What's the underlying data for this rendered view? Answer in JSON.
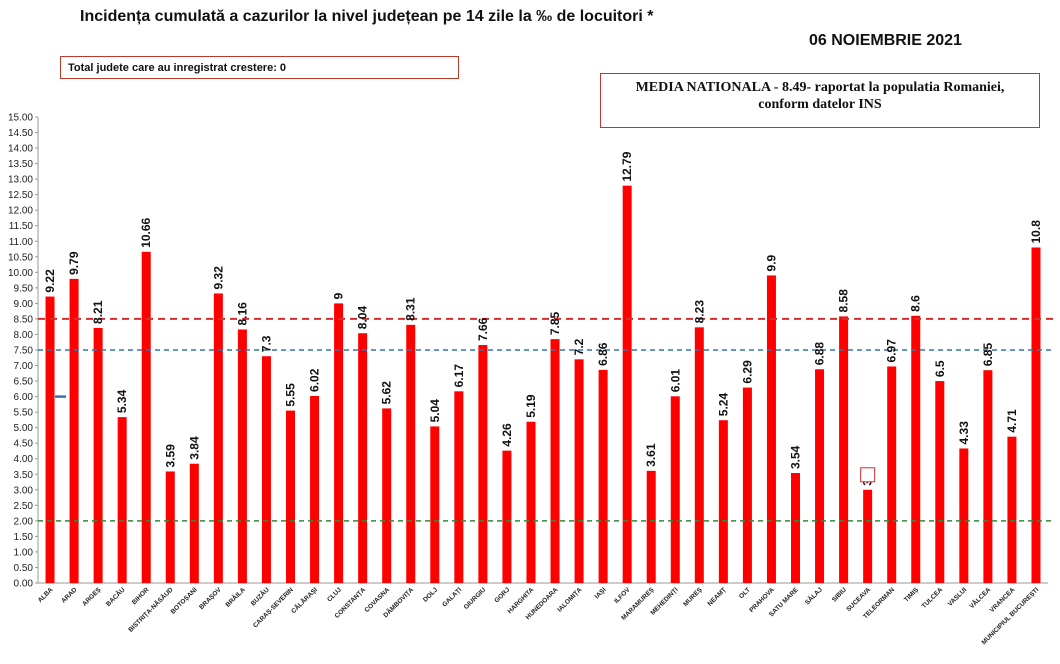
{
  "header": {
    "title": "Incidența cumulată a cazurilor la nivel județean pe 14 zile la ‰ de locuitori *",
    "date": "06 NOIEMBRIE 2021",
    "growth_box": "Total judete care au inregistrat crestere: 0",
    "national_box_line1": "MEDIA NATIONALA - 8.49-  raportat la populatia Romaniei,",
    "national_box_line2": "conform datelor INS"
  },
  "colors": {
    "bar": "#ff0000",
    "national_line": "#d62d2d",
    "blue_line": "#2e75b6",
    "green_line": "#2e8b3c"
  },
  "chart_data": {
    "type": "bar",
    "title": "Incidența cumulată a cazurilor la nivel județean pe 14 zile la ‰ de locuitori *",
    "categories": [
      "ALBA",
      "ARAD",
      "ARGEȘ",
      "BACĂU",
      "BIHOR",
      "BISTRIȚA-NĂSĂUD",
      "BOTOȘANI",
      "BRAȘOV",
      "BRĂILA",
      "BUZĂU",
      "CARAȘ-SEVERIN",
      "CĂLĂRAȘI",
      "CLUJ",
      "CONSTANȚA",
      "COVASNA",
      "DÂMBOVIȚA",
      "DOLJ",
      "GALAȚI",
      "GIURGIU",
      "GORJ",
      "HARGHITA",
      "HUNEDOARA",
      "IALOMIȚA",
      "IAȘI",
      "ILFOV",
      "MARAMUREȘ",
      "MEHEDINȚI",
      "MUREȘ",
      "NEAMȚ",
      "OLT",
      "PRAHOVA",
      "SATU MARE",
      "SĂLAJ",
      "SIBIU",
      "SUCEAVA",
      "TELEORMAN",
      "TIMIȘ",
      "TULCEA",
      "VASLUI",
      "VÂLCEA",
      "VRANCEA",
      "MUNICIPIUL BUCUREȘTI"
    ],
    "values": [
      9.22,
      9.79,
      8.21,
      5.34,
      10.66,
      3.59,
      3.84,
      9.32,
      8.16,
      7.3,
      5.55,
      6.02,
      9,
      8.04,
      5.62,
      8.31,
      5.04,
      6.17,
      7.66,
      4.26,
      5.19,
      7.85,
      7.2,
      6.86,
      12.79,
      3.61,
      6.01,
      8.23,
      5.24,
      6.29,
      9.9,
      3.54,
      6.88,
      8.58,
      3,
      6.97,
      8.6,
      6.5,
      4.33,
      6.85,
      4.71,
      10.8
    ],
    "value_labels": [
      "9.22",
      "9.79",
      "8.21",
      "5.34",
      "10.66",
      "3.59",
      "3.84",
      "9.32",
      "8.16",
      "7.3",
      "5.55",
      "6.02",
      "9",
      "8.04",
      "5.62",
      "8.31",
      "5.04",
      "6.17",
      "7.66",
      "4.26",
      "5.19",
      "7.85",
      "7.2",
      "6.86",
      "12.79",
      "3.61",
      "6.01",
      "8.23",
      "5.24",
      "6.29",
      "9.9",
      "3.54",
      "6.88",
      "8.58",
      "3",
      "6.97",
      "8.6",
      "6.5",
      "4.33",
      "6.85",
      "4.71",
      "10.8"
    ],
    "ylim": [
      0,
      15
    ],
    "ytick_step": 0.5,
    "ytick_labels": [
      "0.00",
      "0.50",
      "1.00",
      "1.50",
      "2.00",
      "2.50",
      "3.00",
      "3.50",
      "4.00",
      "4.50",
      "5.00",
      "5.50",
      "6.00",
      "6.50",
      "7.00",
      "7.50",
      "8.00",
      "8.50",
      "9.00",
      "9.50",
      "10.00",
      "10.50",
      "11.00",
      "11.50",
      "12.00",
      "12.50",
      "13.00",
      "13.50",
      "14.00",
      "14.50",
      "15.00"
    ],
    "reference_lines": [
      {
        "value": 8.5,
        "style": "dashed",
        "color": "#d62d2d"
      },
      {
        "value": 7.5,
        "style": "dashed",
        "color": "#2e75b6"
      },
      {
        "value": 2.0,
        "style": "dashed",
        "color": "#2e8b3c"
      }
    ],
    "grid": false,
    "legend": "none"
  }
}
